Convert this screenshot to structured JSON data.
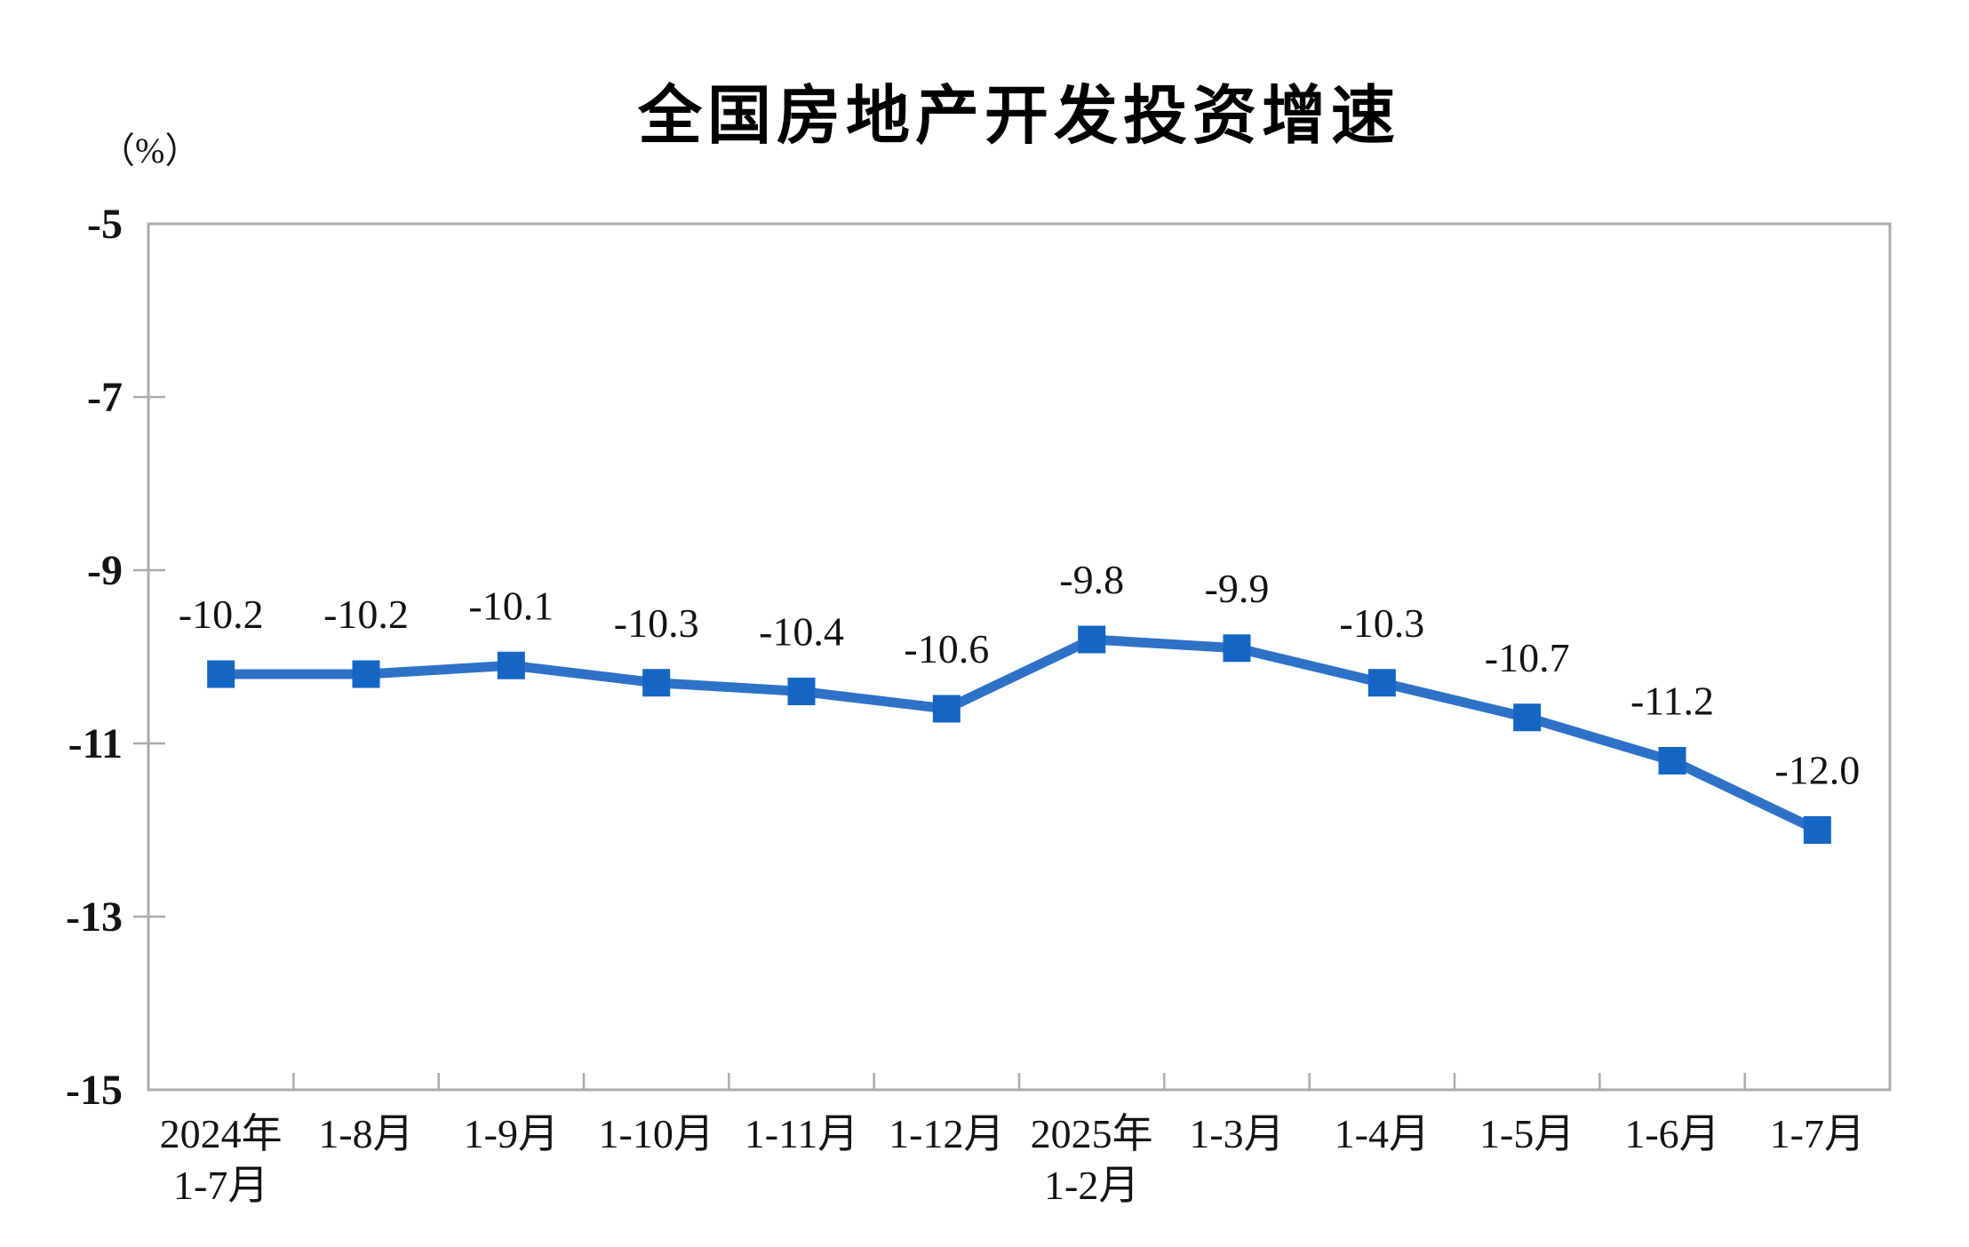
{
  "page": {
    "background": "#ffffff"
  },
  "chart_data": {
    "type": "line",
    "title": "全国房地产开发投资增速",
    "unit_label": "（%）",
    "series": [
      {
        "name": "全国房地产开发投资增速",
        "values": [
          -10.2,
          -10.2,
          -10.1,
          -10.3,
          -10.4,
          -10.6,
          -9.8,
          -9.9,
          -10.3,
          -10.7,
          -11.2,
          -12.0
        ],
        "data_labels": [
          "-10.2",
          "-10.2",
          "-10.1",
          "-10.3",
          "-10.4",
          "-10.6",
          "-9.8",
          "-9.9",
          "-10.3",
          "-10.7",
          "-11.2",
          "-12.0"
        ]
      }
    ],
    "categories": [
      [
        "2024年",
        "1-7月"
      ],
      [
        "1-8月"
      ],
      [
        "1-9月"
      ],
      [
        "1-10月"
      ],
      [
        "1-11月"
      ],
      [
        "1-12月"
      ],
      [
        "2025年",
        "1-2月"
      ],
      [
        "1-3月"
      ],
      [
        "1-4月"
      ],
      [
        "1-5月"
      ],
      [
        "1-6月"
      ],
      [
        "1-7月"
      ]
    ],
    "ylim": [
      -15,
      -5
    ],
    "ytick_step": 2,
    "yticks": [
      -5,
      -7,
      -9,
      -11,
      -13,
      -15
    ],
    "ytick_labels": [
      "-5",
      "-7",
      "-9",
      "-11",
      "-13",
      "-15"
    ],
    "xlabel": "",
    "ylabel": "（%）",
    "grid": "off",
    "legend": "none",
    "colors": {
      "line": "#2E72C8",
      "marker": "#1565C4",
      "axis": "#ABABAB",
      "text": "#141414",
      "title": "#000000"
    }
  }
}
